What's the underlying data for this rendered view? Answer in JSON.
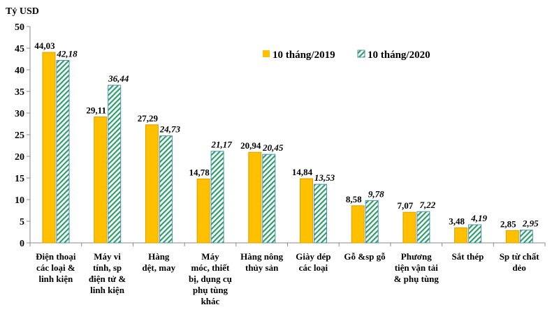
{
  "chart_data": {
    "type": "bar",
    "ylabel": "Tỷ USD",
    "ylim": [
      0,
      50
    ],
    "yticks": [
      0,
      5,
      10,
      15,
      20,
      25,
      30,
      35,
      40,
      45,
      50
    ],
    "grid": false,
    "legend_position": "top-right",
    "categories": [
      [
        "Điện thoại",
        "các loại &",
        "linh kiện"
      ],
      [
        "Máy vi",
        "tính, sp",
        "điện tử &",
        "linh kiện"
      ],
      [
        "Hàng",
        "dệt, may"
      ],
      [
        "Máy",
        "móc, thiết",
        "bị, dụng cụ",
        "phụ tùng",
        "khác"
      ],
      [
        "Hàng nông",
        "thủy sản"
      ],
      [
        "Giày dép",
        "các loại"
      ],
      [
        "Gỗ &sp gỗ"
      ],
      [
        "Phương",
        "tiện vận tải",
        "& phụ tùng"
      ],
      [
        "Sắt thép"
      ],
      [
        "Sp từ chất",
        "dẻo"
      ]
    ],
    "series": [
      {
        "name": "10 tháng/2019",
        "color": "#FFC000",
        "pattern": "solid",
        "values": [
          44.03,
          29.11,
          27.29,
          14.78,
          20.94,
          14.84,
          8.58,
          7.07,
          3.48,
          2.85
        ],
        "labels": [
          "44,03",
          "29,11",
          "27,29",
          "14,78",
          "20,94",
          "14,84",
          "8,58",
          "7,07",
          "3,48",
          "2,85"
        ]
      },
      {
        "name": "10 tháng/2020",
        "color": "#2E9E6A",
        "pattern": "diagonal-hatch",
        "values": [
          42.18,
          36.44,
          24.73,
          21.17,
          20.45,
          13.53,
          9.78,
          7.22,
          4.19,
          2.95
        ],
        "labels": [
          "42,18",
          "36,44",
          "24,73",
          "21,17",
          "20,45",
          "13,53",
          "9,78",
          "7,22",
          "4,19",
          "2,95"
        ]
      }
    ]
  }
}
